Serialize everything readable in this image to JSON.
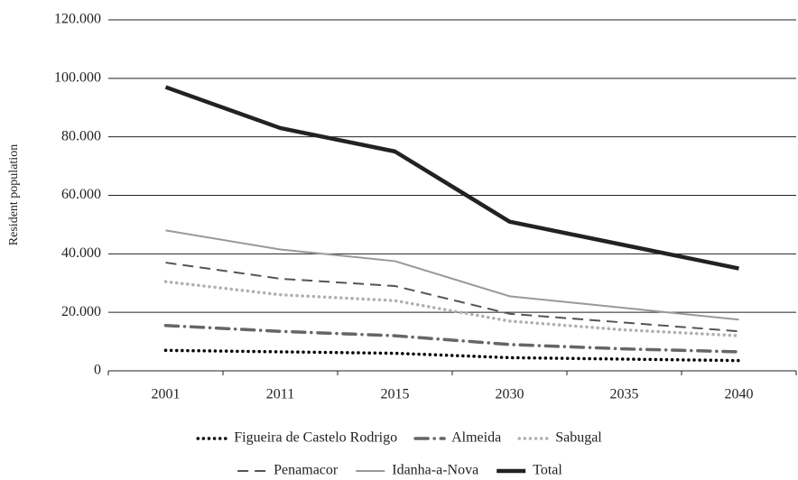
{
  "chart_data": {
    "type": "line",
    "y_label": "Resident population",
    "categories": [
      "2001",
      "2011",
      "2015",
      "2030",
      "2035",
      "2040"
    ],
    "ylim": [
      0,
      120000
    ],
    "yticks": [
      0,
      {
        "value": 20000,
        "label": "20.000"
      },
      {
        "value": 40000,
        "label": "40.000"
      },
      {
        "value": 60000,
        "label": "60.000"
      },
      {
        "value": 80000,
        "label": "80.000"
      },
      {
        "value": 100000,
        "label": "100.000"
      },
      {
        "value": 120000,
        "label": "120.000"
      }
    ],
    "grid": true,
    "legend": "bottom",
    "series": [
      {
        "name": "Figueira de Castelo Rodrigo",
        "color": "#000000",
        "dash": "dot",
        "line_width": 3.5,
        "values": [
          7000,
          6500,
          6000,
          4500,
          4000,
          3500
        ]
      },
      {
        "name": "Almeida",
        "color": "#666666",
        "dash": "dashdot",
        "line_width": 3.5,
        "values": [
          15500,
          13500,
          12000,
          9000,
          7500,
          6500
        ]
      },
      {
        "name": "Sabugal",
        "color": "#b0b0b0",
        "dash": "dot",
        "line_width": 3.5,
        "values": [
          30500,
          26000,
          24000,
          17000,
          14000,
          12000
        ]
      },
      {
        "name": "Penamacor",
        "color": "#555555",
        "dash": "dash",
        "line_width": 2,
        "values": [
          37000,
          31500,
          29000,
          19500,
          16500,
          13500
        ]
      },
      {
        "name": "Idanha-a-Nova",
        "color": "#999999",
        "dash": "solid",
        "line_width": 2,
        "values": [
          48000,
          41500,
          37500,
          25500,
          21500,
          17500
        ]
      },
      {
        "name": "Total",
        "color": "#222222",
        "dash": "solid",
        "line_width": 4.5,
        "values": [
          97000,
          83000,
          75000,
          51000,
          43000,
          35000
        ]
      }
    ]
  }
}
